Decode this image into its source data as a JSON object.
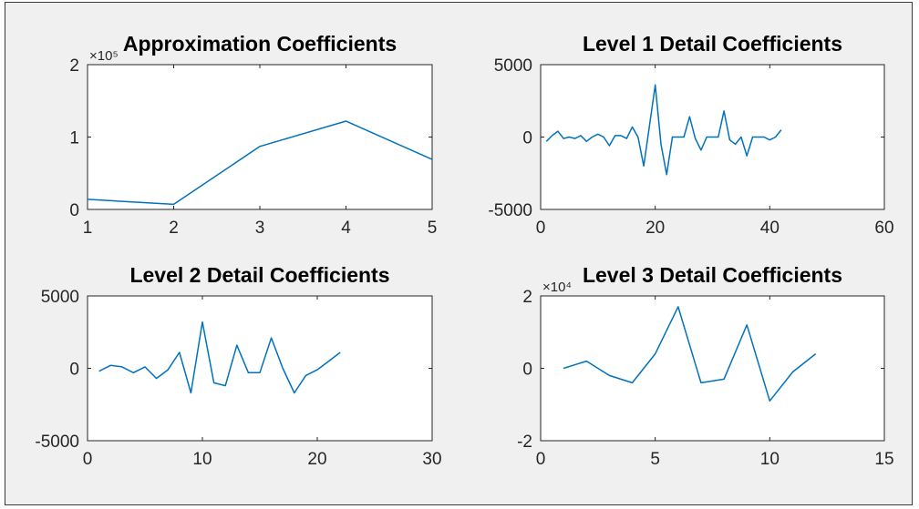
{
  "figure": {
    "background": "#f0f0f0",
    "line_color": "#0072bd"
  },
  "chart_data": [
    {
      "type": "line",
      "title": "Approximation Coefficients",
      "exponent_label": "×10⁵",
      "xlim": [
        1,
        5
      ],
      "ylim": [
        0,
        2
      ],
      "xticks": [
        1,
        2,
        3,
        4,
        5
      ],
      "xtick_labels": [
        "1",
        "2",
        "3",
        "4",
        "5"
      ],
      "yticks": [
        0,
        1,
        2
      ],
      "ytick_labels": [
        "0",
        "1",
        "2"
      ],
      "x": [
        1,
        2,
        3,
        4,
        5
      ],
      "y": [
        0.14,
        0.07,
        0.87,
        1.22,
        0.69
      ]
    },
    {
      "type": "line",
      "title": "Level 1 Detail Coefficients",
      "exponent_label": "",
      "xlim": [
        0,
        60
      ],
      "ylim": [
        -5000,
        5000
      ],
      "xticks": [
        0,
        20,
        40,
        60
      ],
      "xtick_labels": [
        "0",
        "20",
        "40",
        "60"
      ],
      "yticks": [
        -5000,
        0,
        5000
      ],
      "ytick_labels": [
        "-5000",
        "0",
        "5000"
      ],
      "x": [
        1,
        2,
        3,
        4,
        5,
        6,
        7,
        8,
        9,
        10,
        11,
        12,
        13,
        14,
        15,
        16,
        17,
        18,
        19,
        20,
        21,
        22,
        23,
        24,
        25,
        26,
        27,
        28,
        29,
        30,
        31,
        32,
        33,
        34,
        35,
        36,
        37,
        38,
        39,
        40,
        41,
        42
      ],
      "y": [
        -300,
        100,
        400,
        -100,
        0,
        -100,
        100,
        -300,
        0,
        200,
        0,
        -600,
        100,
        100,
        -100,
        700,
        0,
        -2000,
        800,
        3600,
        -500,
        -2600,
        0,
        0,
        0,
        1400,
        -100,
        -900,
        0,
        0,
        0,
        1800,
        -200,
        -500,
        0,
        -1300,
        0,
        0,
        0,
        -200,
        0,
        500
      ]
    },
    {
      "type": "line",
      "title": "Level 2 Detail Coefficients",
      "exponent_label": "",
      "xlim": [
        0,
        30
      ],
      "ylim": [
        -5000,
        5000
      ],
      "xticks": [
        0,
        10,
        20,
        30
      ],
      "xtick_labels": [
        "0",
        "10",
        "20",
        "30"
      ],
      "yticks": [
        -5000,
        0,
        5000
      ],
      "ytick_labels": [
        "-5000",
        "0",
        "5000"
      ],
      "x": [
        1,
        2,
        3,
        4,
        5,
        6,
        7,
        8,
        9,
        10,
        11,
        12,
        13,
        14,
        15,
        16,
        17,
        18,
        19,
        20,
        21,
        22
      ],
      "y": [
        -200,
        200,
        100,
        -300,
        100,
        -700,
        -100,
        1100,
        -1700,
        3200,
        -1000,
        -1200,
        1600,
        -300,
        -300,
        2100,
        0,
        -1700,
        -500,
        -100,
        500,
        1100
      ]
    },
    {
      "type": "line",
      "title": "Level 3 Detail Coefficients",
      "exponent_label": "×10⁴",
      "xlim": [
        0,
        15
      ],
      "ylim": [
        -2,
        2
      ],
      "xticks": [
        0,
        5,
        10,
        15
      ],
      "xtick_labels": [
        "0",
        "5",
        "10",
        "15"
      ],
      "yticks": [
        -2,
        0,
        2
      ],
      "ytick_labels": [
        "-2",
        "0",
        "2"
      ],
      "x": [
        1,
        2,
        3,
        4,
        5,
        6,
        7,
        8,
        9,
        10,
        11,
        12
      ],
      "y": [
        0,
        0.2,
        -0.2,
        -0.4,
        0.4,
        1.7,
        -0.4,
        -0.3,
        1.2,
        -0.9,
        -0.1,
        0.4
      ]
    }
  ]
}
